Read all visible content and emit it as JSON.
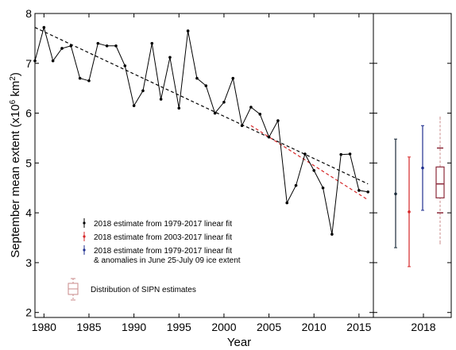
{
  "chart_data": {
    "type": "line",
    "xlabel": "Year",
    "ylabel_main": "September mean extent (x10",
    "ylabel_sup": "6",
    "ylabel_mid": " km",
    "ylabel_sup2": "2",
    "ylabel_end": ")",
    "xlim": [
      1979,
      2016.6
    ],
    "ylim": [
      1.9,
      8
    ],
    "xticks": [
      "1980",
      "1985",
      "1990",
      "1995",
      "2000",
      "2005",
      "2010",
      "2015"
    ],
    "xtick_values": [
      1980,
      1985,
      1990,
      1995,
      2000,
      2005,
      2010,
      2015
    ],
    "yticks": [
      "2",
      "3",
      "4",
      "5",
      "6",
      "7",
      "8"
    ],
    "ytick_values": [
      2,
      3,
      4,
      5,
      6,
      7,
      8
    ],
    "grid": false,
    "legend_placement": "lower-left",
    "series": [
      {
        "type": "line",
        "color": "#000000",
        "x": [
          1979,
          1980,
          1981,
          1982,
          1983,
          1984,
          1985,
          1986,
          1987,
          1988,
          1989,
          1990,
          1991,
          1992,
          1993,
          1994,
          1995,
          1996,
          1997,
          1998,
          1999,
          2000,
          2001,
          2002,
          2003,
          2004,
          2005,
          2006,
          2007,
          2008,
          2009,
          2010,
          2011,
          2012,
          2013,
          2014,
          2015,
          2016
        ],
        "y": [
          7.05,
          7.72,
          7.05,
          7.3,
          7.35,
          6.7,
          6.65,
          7.4,
          7.35,
          7.35,
          6.95,
          6.15,
          6.45,
          7.4,
          6.28,
          7.12,
          6.1,
          7.65,
          6.7,
          6.55,
          6.0,
          6.22,
          6.7,
          5.75,
          6.12,
          5.98,
          5.52,
          5.85,
          4.2,
          4.55,
          5.18,
          4.85,
          4.5,
          3.57,
          5.17,
          5.18,
          4.45,
          4.42
        ]
      }
    ],
    "fits": [
      {
        "label": "1979-2017 linear fit",
        "color": "#000000",
        "x": [
          1979,
          2016
        ],
        "y": [
          7.72,
          4.58
        ]
      },
      {
        "label": "2003-2017 linear fit",
        "color": "#d62728",
        "x": [
          2003,
          2016
        ],
        "y": [
          5.75,
          4.26
        ]
      }
    ],
    "side_panel": {
      "xtick_label": "2018",
      "estimates": [
        {
          "name": "2018 estimate from 1979-2017 linear fit",
          "color": "#1a2a3a",
          "value": 4.38,
          "low": 3.3,
          "high": 5.48
        },
        {
          "name": "2018 estimate from 2003-2017 linear fit",
          "color": "#d62728",
          "value": 4.02,
          "low": 2.92,
          "high": 5.12
        },
        {
          "name": "2018 estimate from 1979-2017 linear fit & anomalies in June 25-July 09 ice extent",
          "color": "#1f2f8f",
          "value": 4.9,
          "low": 4.05,
          "high": 5.75
        }
      ],
      "sipn_box": {
        "label": "Distribution of SIPN estimates",
        "whisker_low": 3.4,
        "q1": 4.3,
        "median": 4.58,
        "q3": 4.92,
        "whisker_high": 5.9,
        "cap_low": 4.0,
        "cap_high": 5.3,
        "box_color": "#8b2a3a",
        "whisker_color": "#c88a8a"
      }
    },
    "legend": [
      {
        "text": "2018 estimate from 1979-2017 linear fit",
        "color": "#000000"
      },
      {
        "text": "2018 estimate from 2003-2017 linear fit",
        "color": "#d62728"
      },
      {
        "text_line1": "2018 estimate from 1979-2017 linear fit",
        "text_line2": "& anomalies in June 25-July 09 ice extent",
        "color": "#1f2f8f"
      },
      {
        "text": "Distribution of SIPN estimates",
        "color": "#c88a8a"
      }
    ]
  }
}
